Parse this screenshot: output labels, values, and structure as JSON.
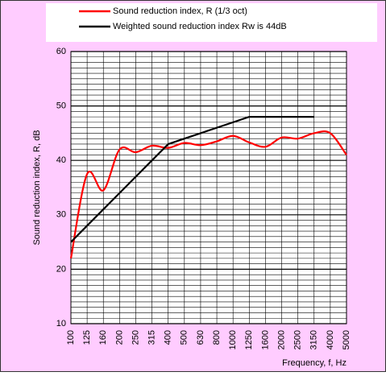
{
  "chart_data": {
    "type": "line",
    "y_label": "Sound reduction index, R, dB",
    "x_label": "Frequency, f, Hz",
    "categories": [
      "100",
      "125",
      "160",
      "200",
      "250",
      "315",
      "400",
      "500",
      "630",
      "800",
      "1000",
      "1250",
      "1600",
      "2000",
      "2500",
      "3150",
      "4000",
      "5000"
    ],
    "series": [
      {
        "name": "Sound reduction index, R (1/3 oct)",
        "color": "#ff0000",
        "values": [
          22,
          37.5,
          34.5,
          42,
          41.5,
          42.7,
          42.3,
          43.2,
          42.8,
          43.5,
          44.5,
          43.3,
          42.5,
          44.2,
          44,
          45,
          45,
          41
        ]
      },
      {
        "name": "Weighted sound reduction index Rw is 44dB",
        "color": "#000000",
        "values": [
          25,
          28,
          31,
          34,
          37,
          40,
          43,
          44,
          45,
          46,
          47,
          48,
          48,
          48,
          48,
          48,
          null,
          null
        ]
      }
    ],
    "ylim": [
      10,
      60
    ],
    "yticks": [
      10,
      20,
      30,
      40,
      50,
      60
    ],
    "yminorticks": [
      11,
      12,
      13,
      14,
      15,
      16,
      17,
      18,
      19,
      21,
      22,
      23,
      24,
      25,
      26,
      27,
      28,
      29,
      31,
      32,
      33,
      34,
      35,
      36,
      37,
      38,
      39,
      41,
      42,
      43,
      44,
      45,
      46,
      47,
      48,
      49,
      51,
      52,
      53,
      54,
      55,
      56,
      57,
      58,
      59
    ],
    "grid": true,
    "legend": "top"
  }
}
